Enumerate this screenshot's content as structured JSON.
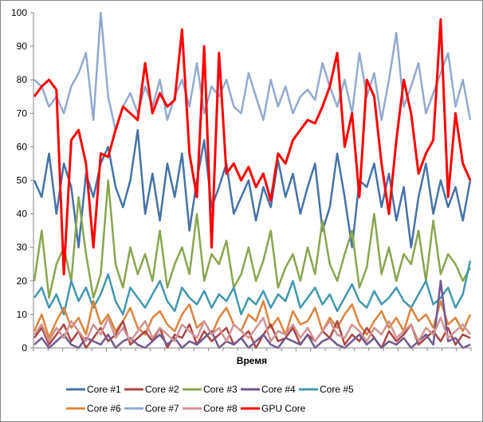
{
  "chart_data": {
    "type": "line",
    "title": "",
    "xlabel": "Время",
    "ylabel": "",
    "ylim": [
      0,
      100
    ],
    "yticks": [
      0,
      10,
      20,
      30,
      40,
      50,
      60,
      70,
      80,
      90,
      100
    ],
    "x_tick_count": 30,
    "grid": false,
    "legend_position": "bottom",
    "series": [
      {
        "name": "Core #1",
        "color": "#4572A7",
        "values": [
          50,
          45,
          58,
          40,
          55,
          48,
          30,
          52,
          45,
          55,
          60,
          48,
          42,
          50,
          65,
          40,
          52,
          38,
          55,
          45,
          58,
          35,
          50,
          62,
          42,
          48,
          55,
          40,
          45,
          50,
          38,
          48,
          42,
          56,
          45,
          52,
          40,
          48,
          55,
          35,
          42,
          58,
          45,
          30,
          50,
          48,
          55,
          42,
          52,
          38,
          48,
          30,
          45,
          55,
          40,
          50,
          42,
          48,
          38,
          50
        ]
      },
      {
        "name": "Core #2",
        "color": "#AA4643",
        "values": [
          3,
          6,
          1,
          4,
          7,
          2,
          5,
          0,
          3,
          6,
          2,
          4,
          8,
          1,
          3,
          5,
          2,
          6,
          0,
          4,
          3,
          7,
          1,
          5,
          2,
          4,
          6,
          1,
          3,
          5,
          0,
          4,
          7,
          2,
          3,
          6,
          1,
          4,
          2,
          5,
          3,
          8,
          1,
          4,
          2,
          6,
          3,
          0,
          5,
          2,
          4,
          7,
          1,
          3,
          5,
          2,
          6,
          1,
          4,
          3
        ]
      },
      {
        "name": "Core #3",
        "color": "#89A54E",
        "values": [
          20,
          35,
          15,
          25,
          30,
          20,
          45,
          28,
          15,
          22,
          50,
          25,
          18,
          30,
          22,
          28,
          20,
          35,
          18,
          25,
          30,
          22,
          40,
          20,
          28,
          25,
          32,
          18,
          22,
          30,
          20,
          26,
          35,
          18,
          24,
          28,
          20,
          30,
          22,
          38,
          25,
          20,
          28,
          35,
          18,
          24,
          40,
          22,
          30,
          20,
          28,
          25,
          35,
          20,
          38,
          22,
          28,
          25,
          20,
          24
        ]
      },
      {
        "name": "Core #4",
        "color": "#71588F",
        "values": [
          1,
          3,
          0,
          2,
          4,
          1,
          0,
          3,
          2,
          1,
          4,
          0,
          2,
          3,
          1,
          0,
          2,
          4,
          1,
          3,
          0,
          2,
          1,
          3,
          5,
          0,
          2,
          1,
          3,
          0,
          2,
          4,
          1,
          0,
          3,
          2,
          1,
          4,
          0,
          2,
          3,
          1,
          0,
          2,
          4,
          1,
          3,
          0,
          2,
          1,
          3,
          0,
          2,
          4,
          1,
          20,
          2,
          3,
          0,
          1
        ]
      },
      {
        "name": "Core #5",
        "color": "#4198AF",
        "values": [
          15,
          18,
          12,
          16,
          10,
          20,
          14,
          18,
          12,
          16,
          22,
          14,
          10,
          18,
          15,
          12,
          16,
          20,
          14,
          11,
          18,
          15,
          13,
          17,
          12,
          16,
          14,
          18,
          10,
          15,
          13,
          17,
          12,
          16,
          14,
          20,
          12,
          15,
          18,
          13,
          16,
          11,
          15,
          19,
          14,
          12,
          17,
          13,
          15,
          18,
          14,
          12,
          16,
          20,
          13,
          15,
          18,
          12,
          16,
          26
        ]
      },
      {
        "name": "Core #6",
        "color": "#DB843D",
        "values": [
          5,
          10,
          3,
          8,
          12,
          6,
          9,
          4,
          14,
          7,
          10,
          5,
          8,
          12,
          6,
          4,
          9,
          11,
          7,
          5,
          10,
          13,
          6,
          8,
          4,
          9,
          12,
          7,
          5,
          10,
          8,
          14,
          6,
          9,
          4,
          11,
          7,
          8,
          12,
          5,
          9,
          6,
          10,
          13,
          7,
          4,
          8,
          11,
          6,
          9,
          5,
          12,
          8,
          10,
          6,
          14,
          7,
          9,
          5,
          10
        ]
      },
      {
        "name": "Core #7",
        "color": "#93A9CF",
        "values": [
          80,
          78,
          72,
          75,
          70,
          78,
          82,
          88,
          68,
          100,
          75,
          65,
          72,
          76,
          70,
          78,
          72,
          80,
          68,
          75,
          80,
          72,
          85,
          70,
          78,
          75,
          80,
          72,
          70,
          82,
          75,
          68,
          80,
          72,
          78,
          70,
          75,
          77,
          74,
          85,
          78,
          72,
          80,
          70,
          88,
          75,
          82,
          68,
          80,
          94,
          72,
          78,
          85,
          70,
          76,
          82,
          88,
          72,
          80,
          68
        ]
      },
      {
        "name": "Core #8",
        "color": "#D19392",
        "values": [
          4,
          7,
          2,
          6,
          3,
          8,
          5,
          2,
          7,
          4,
          9,
          3,
          6,
          2,
          5,
          8,
          3,
          6,
          4,
          2,
          7,
          5,
          3,
          8,
          4,
          6,
          2,
          7,
          5,
          3,
          6,
          9,
          2,
          5,
          4,
          7,
          3,
          6,
          2,
          5,
          8,
          4,
          3,
          7,
          5,
          2,
          6,
          4,
          8,
          3,
          5,
          7,
          2,
          6,
          4,
          9,
          3,
          5,
          7,
          4
        ]
      },
      {
        "name": "GPU Core",
        "color": "#FF0000",
        "values": [
          75,
          78,
          80,
          77,
          22,
          62,
          65,
          55,
          30,
          58,
          57,
          65,
          72,
          70,
          68,
          85,
          70,
          76,
          72,
          74,
          95,
          58,
          45,
          90,
          30,
          88,
          52,
          55,
          50,
          54,
          48,
          52,
          44,
          58,
          55,
          62,
          65,
          68,
          67,
          72,
          78,
          88,
          60,
          70,
          45,
          80,
          75,
          55,
          40,
          62,
          80,
          70,
          52,
          58,
          62,
          98,
          45,
          70,
          55,
          50
        ]
      }
    ]
  }
}
